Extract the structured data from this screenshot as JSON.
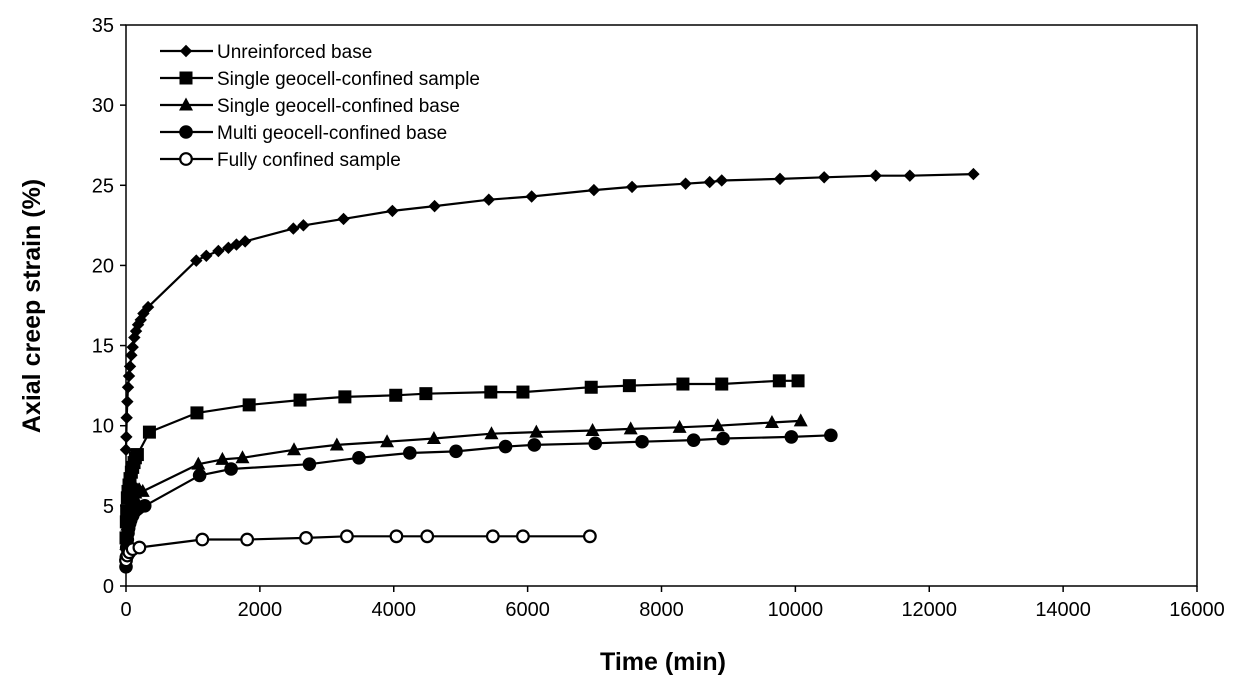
{
  "chart_data": {
    "type": "line",
    "xlabel": "Time (min)",
    "ylabel": "Axial creep strain (%)",
    "xlim": [
      0,
      16000
    ],
    "ylim": [
      0,
      35
    ],
    "x_ticks": [
      0,
      2000,
      4000,
      6000,
      8000,
      10000,
      12000,
      14000,
      16000
    ],
    "y_ticks": [
      0,
      5,
      10,
      15,
      20,
      25,
      30,
      35
    ],
    "grid": false,
    "legend_position": "top-left",
    "series": [
      {
        "name": "Unreinforced base",
        "marker": "diamond",
        "x": [
          0,
          5,
          10,
          20,
          30,
          45,
          60,
          80,
          100,
          125,
          150,
          180,
          220,
          260,
          330,
          1050,
          1200,
          1380,
          1530,
          1650,
          1780,
          2500,
          2650,
          3250,
          3980,
          4610,
          5420,
          6060,
          6990,
          7560,
          8360,
          8720,
          8900,
          9770,
          10430,
          11200,
          11710,
          12660
        ],
        "y": [
          8.5,
          9.3,
          10.5,
          11.5,
          12.4,
          13.1,
          13.7,
          14.4,
          14.9,
          15.5,
          15.9,
          16.3,
          16.6,
          17.0,
          17.4,
          20.3,
          20.6,
          20.9,
          21.1,
          21.3,
          21.5,
          22.3,
          22.5,
          22.9,
          23.4,
          23.7,
          24.1,
          24.3,
          24.7,
          24.9,
          25.1,
          25.2,
          25.3,
          25.4,
          25.5,
          25.6,
          25.6,
          25.7
        ]
      },
      {
        "name": "Single geocell-confined sample",
        "marker": "square",
        "x": [
          0,
          5,
          10,
          20,
          30,
          45,
          60,
          80,
          100,
          120,
          140,
          170,
          350,
          1060,
          1840,
          2600,
          3270,
          4030,
          4480,
          5450,
          5930,
          6950,
          7520,
          8320,
          8900,
          9760,
          10040
        ],
        "y": [
          3.0,
          4.0,
          4.7,
          5.5,
          5.9,
          6.3,
          6.7,
          7.1,
          7.4,
          7.7,
          8.0,
          8.2,
          9.6,
          10.8,
          11.3,
          11.6,
          11.8,
          11.9,
          12.0,
          12.1,
          12.1,
          12.4,
          12.5,
          12.6,
          12.6,
          12.8,
          12.8
        ]
      },
      {
        "name": "Single geocell-confined base",
        "marker": "triangle",
        "x": [
          0,
          5,
          10,
          20,
          30,
          40,
          55,
          70,
          85,
          100,
          120,
          140,
          160,
          180,
          200,
          250,
          1080,
          1440,
          1740,
          2510,
          3150,
          3900,
          4600,
          5460,
          6130,
          6970,
          7540,
          8270,
          8840,
          9650,
          10080
        ],
        "y": [
          2.0,
          2.6,
          3.2,
          3.8,
          4.2,
          4.5,
          4.8,
          5.1,
          5.3,
          5.5,
          5.6,
          5.8,
          6.0,
          6.0,
          6.0,
          5.9,
          7.6,
          7.9,
          8.0,
          8.5,
          8.8,
          9.0,
          9.2,
          9.5,
          9.6,
          9.7,
          9.8,
          9.9,
          10.0,
          10.2,
          10.3
        ]
      },
      {
        "name": "Multi geocell-confined base",
        "marker": "circle",
        "x": [
          0,
          5,
          10,
          20,
          30,
          40,
          55,
          70,
          85,
          100,
          120,
          140,
          170,
          200,
          280,
          1100,
          1570,
          2740,
          3480,
          4240,
          4930,
          5670,
          6100,
          7010,
          7710,
          8480,
          8920,
          9940,
          10530
        ],
        "y": [
          1.2,
          1.8,
          2.4,
          2.9,
          3.3,
          3.6,
          3.9,
          4.1,
          4.3,
          4.4,
          4.6,
          4.7,
          4.8,
          4.9,
          5.0,
          6.9,
          7.3,
          7.6,
          8.0,
          8.3,
          8.4,
          8.7,
          8.8,
          8.9,
          9.0,
          9.1,
          9.2,
          9.3,
          9.4
        ]
      },
      {
        "name": "Fully confined sample",
        "marker": "open-circle",
        "x": [
          0,
          20,
          50,
          100,
          200,
          1140,
          1810,
          2690,
          3300,
          4040,
          4500,
          5480,
          5930,
          6930
        ],
        "y": [
          1.6,
          1.9,
          2.1,
          2.3,
          2.4,
          2.9,
          2.9,
          3.0,
          3.1,
          3.1,
          3.1,
          3.1,
          3.1,
          3.1
        ]
      }
    ]
  }
}
